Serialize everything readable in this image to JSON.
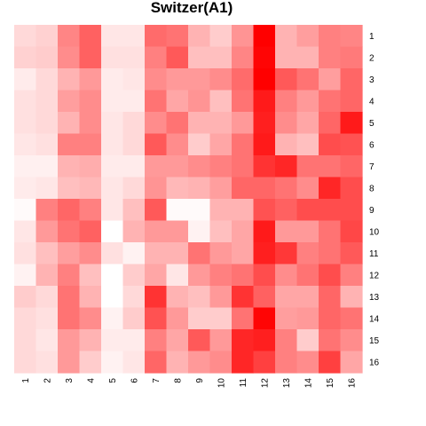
{
  "chart_data": {
    "type": "heatmap",
    "title": "Switzer(A1)",
    "x_labels": [
      "1",
      "2",
      "3",
      "4",
      "5",
      "6",
      "7",
      "8",
      "9",
      "10",
      "11",
      "12",
      "13",
      "14",
      "15",
      "16"
    ],
    "y_labels": [
      "1",
      "2",
      "3",
      "4",
      "5",
      "6",
      "7",
      "8",
      "9",
      "10",
      "11",
      "12",
      "13",
      "14",
      "15",
      "16"
    ],
    "value_range": [
      0,
      1
    ],
    "color_low": "#ffffff",
    "color_high": "#ff0000",
    "values": [
      [
        0.15,
        0.18,
        0.48,
        0.62,
        0.1,
        0.1,
        0.58,
        0.55,
        0.3,
        0.2,
        0.42,
        1.0,
        0.3,
        0.38,
        0.5,
        0.48
      ],
      [
        0.18,
        0.2,
        0.45,
        0.62,
        0.12,
        0.12,
        0.5,
        0.65,
        0.25,
        0.25,
        0.48,
        0.98,
        0.3,
        0.3,
        0.5,
        0.52
      ],
      [
        0.08,
        0.15,
        0.3,
        0.4,
        0.08,
        0.1,
        0.45,
        0.4,
        0.4,
        0.45,
        0.58,
        1.0,
        0.65,
        0.55,
        0.38,
        0.6
      ],
      [
        0.12,
        0.15,
        0.38,
        0.45,
        0.08,
        0.08,
        0.55,
        0.35,
        0.42,
        0.25,
        0.55,
        0.9,
        0.5,
        0.4,
        0.55,
        0.6
      ],
      [
        0.12,
        0.15,
        0.3,
        0.45,
        0.1,
        0.15,
        0.45,
        0.55,
        0.3,
        0.3,
        0.4,
        0.88,
        0.45,
        0.35,
        0.6,
        0.9
      ],
      [
        0.1,
        0.12,
        0.5,
        0.5,
        0.1,
        0.15,
        0.65,
        0.45,
        0.2,
        0.35,
        0.55,
        0.9,
        0.3,
        0.25,
        0.7,
        0.68
      ],
      [
        0.06,
        0.06,
        0.3,
        0.32,
        0.08,
        0.08,
        0.4,
        0.4,
        0.45,
        0.5,
        0.55,
        0.8,
        0.85,
        0.55,
        0.55,
        0.6
      ],
      [
        0.08,
        0.1,
        0.25,
        0.28,
        0.1,
        0.15,
        0.42,
        0.28,
        0.3,
        0.38,
        0.6,
        0.6,
        0.55,
        0.45,
        0.85,
        0.7
      ],
      [
        0.02,
        0.5,
        0.6,
        0.5,
        0.1,
        0.25,
        0.65,
        0.02,
        0.02,
        0.3,
        0.3,
        0.68,
        0.62,
        0.7,
        0.7,
        0.7
      ],
      [
        0.1,
        0.4,
        0.55,
        0.62,
        0.0,
        0.3,
        0.4,
        0.4,
        0.05,
        0.25,
        0.35,
        0.9,
        0.4,
        0.4,
        0.55,
        0.72
      ],
      [
        0.12,
        0.25,
        0.38,
        0.45,
        0.12,
        0.05,
        0.3,
        0.3,
        0.55,
        0.4,
        0.35,
        0.88,
        0.78,
        0.5,
        0.55,
        0.65
      ],
      [
        0.05,
        0.3,
        0.5,
        0.25,
        0.0,
        0.2,
        0.35,
        0.1,
        0.4,
        0.5,
        0.55,
        0.7,
        0.45,
        0.55,
        0.7,
        0.5
      ],
      [
        0.2,
        0.15,
        0.55,
        0.3,
        0.0,
        0.15,
        0.8,
        0.3,
        0.25,
        0.4,
        0.8,
        0.62,
        0.35,
        0.35,
        0.6,
        0.3
      ],
      [
        0.15,
        0.12,
        0.55,
        0.45,
        0.05,
        0.2,
        0.68,
        0.4,
        0.2,
        0.2,
        0.55,
        0.98,
        0.38,
        0.4,
        0.6,
        0.55
      ],
      [
        0.15,
        0.1,
        0.4,
        0.3,
        0.08,
        0.08,
        0.5,
        0.35,
        0.65,
        0.4,
        0.85,
        0.88,
        0.5,
        0.2,
        0.55,
        0.45
      ],
      [
        0.15,
        0.12,
        0.4,
        0.2,
        0.05,
        0.1,
        0.6,
        0.3,
        0.4,
        0.45,
        0.85,
        0.75,
        0.5,
        0.45,
        0.75,
        0.35
      ]
    ]
  }
}
